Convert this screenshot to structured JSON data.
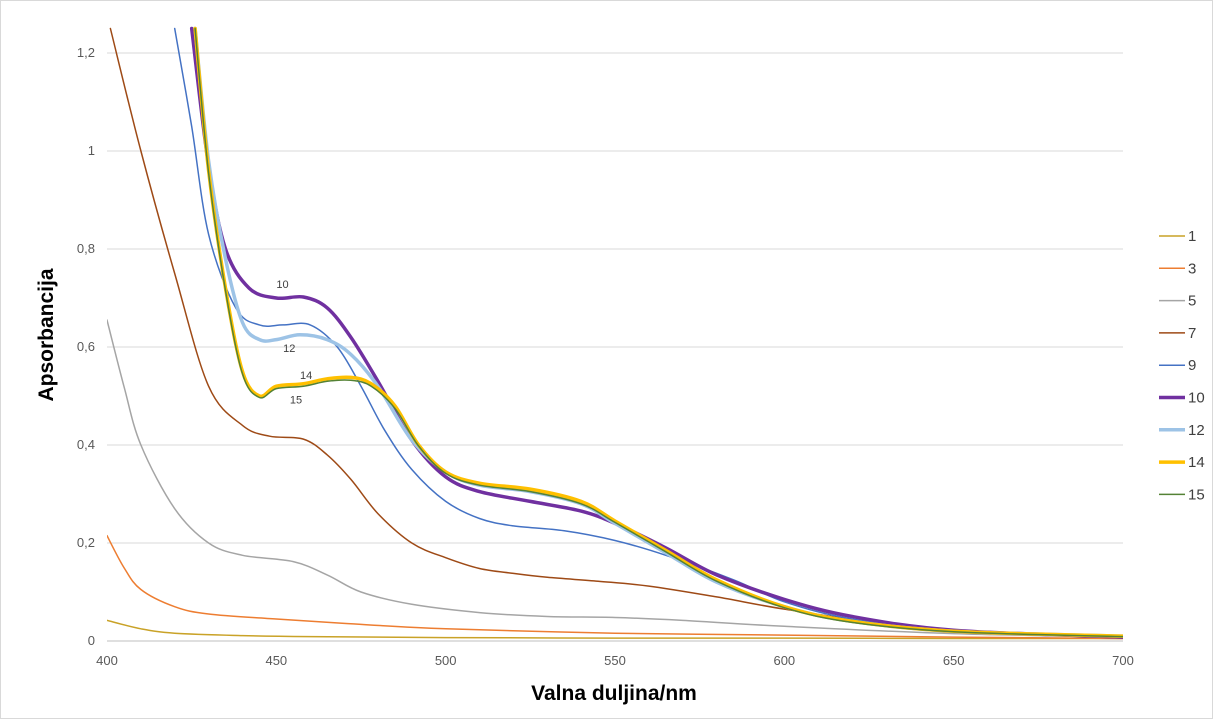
{
  "chart_data": {
    "type": "line",
    "title": "",
    "xlabel": "Valna duljina/nm",
    "ylabel": "Apsorbancija",
    "xlim": [
      400,
      700
    ],
    "ylim": [
      0,
      1.25
    ],
    "xticks": [
      "400",
      "450",
      "500",
      "550",
      "600",
      "650",
      "700"
    ],
    "yticks": [
      "0",
      "0,2",
      "0,4",
      "0,6",
      "0,8",
      "1",
      "1,2"
    ],
    "grid": "horizontal",
    "legend_position": "right",
    "annotations": [
      {
        "text": "10",
        "x": 450,
        "y": 0.72
      },
      {
        "text": "12",
        "x": 452,
        "y": 0.59
      },
      {
        "text": "14",
        "x": 457,
        "y": 0.535
      },
      {
        "text": "15",
        "x": 454,
        "y": 0.485
      }
    ],
    "series": [
      {
        "name": "1",
        "color": "#c9a227",
        "width": 1.5,
        "points": [
          [
            400,
            0.042
          ],
          [
            410,
            0.025
          ],
          [
            420,
            0.016
          ],
          [
            440,
            0.011
          ],
          [
            460,
            0.009
          ],
          [
            500,
            0.007
          ],
          [
            550,
            0.006
          ],
          [
            600,
            0.006
          ],
          [
            650,
            0.005
          ],
          [
            700,
            0.005
          ]
        ]
      },
      {
        "name": "3",
        "color": "#ed7d31",
        "width": 1.5,
        "points": [
          [
            400,
            0.215
          ],
          [
            405,
            0.15
          ],
          [
            410,
            0.105
          ],
          [
            420,
            0.07
          ],
          [
            430,
            0.055
          ],
          [
            450,
            0.045
          ],
          [
            470,
            0.036
          ],
          [
            500,
            0.025
          ],
          [
            550,
            0.016
          ],
          [
            600,
            0.012
          ],
          [
            650,
            0.008
          ],
          [
            700,
            0.005
          ]
        ]
      },
      {
        "name": "5",
        "color": "#a5a5a5",
        "width": 1.5,
        "points": [
          [
            400,
            0.655
          ],
          [
            405,
            0.52
          ],
          [
            410,
            0.4
          ],
          [
            420,
            0.27
          ],
          [
            430,
            0.2
          ],
          [
            440,
            0.175
          ],
          [
            455,
            0.162
          ],
          [
            465,
            0.135
          ],
          [
            475,
            0.1
          ],
          [
            490,
            0.075
          ],
          [
            510,
            0.058
          ],
          [
            530,
            0.05
          ],
          [
            550,
            0.048
          ],
          [
            570,
            0.042
          ],
          [
            600,
            0.03
          ],
          [
            650,
            0.015
          ],
          [
            700,
            0.008
          ]
        ]
      },
      {
        "name": "7",
        "color": "#9e4a16",
        "width": 1.5,
        "points": [
          [
            401,
            1.25
          ],
          [
            410,
            1.0
          ],
          [
            420,
            0.75
          ],
          [
            430,
            0.52
          ],
          [
            440,
            0.44
          ],
          [
            448,
            0.418
          ],
          [
            458,
            0.412
          ],
          [
            465,
            0.38
          ],
          [
            472,
            0.33
          ],
          [
            480,
            0.26
          ],
          [
            490,
            0.2
          ],
          [
            500,
            0.17
          ],
          [
            510,
            0.148
          ],
          [
            520,
            0.138
          ],
          [
            530,
            0.13
          ],
          [
            545,
            0.122
          ],
          [
            560,
            0.112
          ],
          [
            580,
            0.09
          ],
          [
            600,
            0.065
          ],
          [
            630,
            0.035
          ],
          [
            660,
            0.018
          ],
          [
            700,
            0.006
          ]
        ]
      },
      {
        "name": "9",
        "color": "#4472c4",
        "width": 1.5,
        "points": [
          [
            420,
            1.25
          ],
          [
            425,
            1.05
          ],
          [
            430,
            0.83
          ],
          [
            438,
            0.68
          ],
          [
            445,
            0.645
          ],
          [
            452,
            0.645
          ],
          [
            460,
            0.645
          ],
          [
            468,
            0.6
          ],
          [
            475,
            0.52
          ],
          [
            482,
            0.43
          ],
          [
            490,
            0.35
          ],
          [
            500,
            0.285
          ],
          [
            510,
            0.25
          ],
          [
            520,
            0.235
          ],
          [
            535,
            0.225
          ],
          [
            550,
            0.205
          ],
          [
            565,
            0.175
          ],
          [
            585,
            0.125
          ],
          [
            600,
            0.08
          ],
          [
            620,
            0.045
          ],
          [
            650,
            0.022
          ],
          [
            700,
            0.008
          ]
        ]
      },
      {
        "name": "10",
        "color": "#7030a0",
        "width": 3.5,
        "points": [
          [
            425,
            1.25
          ],
          [
            430,
            0.97
          ],
          [
            435,
            0.8
          ],
          [
            442,
            0.72
          ],
          [
            450,
            0.7
          ],
          [
            458,
            0.702
          ],
          [
            465,
            0.68
          ],
          [
            472,
            0.62
          ],
          [
            480,
            0.53
          ],
          [
            490,
            0.41
          ],
          [
            500,
            0.335
          ],
          [
            510,
            0.305
          ],
          [
            525,
            0.285
          ],
          [
            540,
            0.265
          ],
          [
            550,
            0.24
          ],
          [
            565,
            0.19
          ],
          [
            580,
            0.135
          ],
          [
            600,
            0.085
          ],
          [
            620,
            0.05
          ],
          [
            650,
            0.022
          ],
          [
            700,
            0.008
          ]
        ]
      },
      {
        "name": "12",
        "color": "#9dc3e6",
        "width": 3.5,
        "points": [
          [
            426,
            1.25
          ],
          [
            430,
            0.98
          ],
          [
            435,
            0.78
          ],
          [
            440,
            0.65
          ],
          [
            445,
            0.615
          ],
          [
            450,
            0.615
          ],
          [
            457,
            0.625
          ],
          [
            465,
            0.615
          ],
          [
            472,
            0.585
          ],
          [
            480,
            0.52
          ],
          [
            490,
            0.41
          ],
          [
            500,
            0.345
          ],
          [
            510,
            0.318
          ],
          [
            525,
            0.305
          ],
          [
            540,
            0.28
          ],
          [
            550,
            0.24
          ],
          [
            565,
            0.18
          ],
          [
            580,
            0.12
          ],
          [
            600,
            0.07
          ],
          [
            620,
            0.04
          ],
          [
            650,
            0.02
          ],
          [
            700,
            0.01
          ]
        ]
      },
      {
        "name": "14",
        "color": "#ffc000",
        "width": 3.5,
        "points": [
          [
            426,
            1.25
          ],
          [
            430,
            0.96
          ],
          [
            435,
            0.72
          ],
          [
            440,
            0.55
          ],
          [
            445,
            0.5
          ],
          [
            450,
            0.52
          ],
          [
            458,
            0.525
          ],
          [
            465,
            0.535
          ],
          [
            472,
            0.538
          ],
          [
            478,
            0.525
          ],
          [
            485,
            0.48
          ],
          [
            492,
            0.4
          ],
          [
            500,
            0.345
          ],
          [
            510,
            0.322
          ],
          [
            525,
            0.31
          ],
          [
            540,
            0.285
          ],
          [
            550,
            0.245
          ],
          [
            565,
            0.185
          ],
          [
            580,
            0.125
          ],
          [
            600,
            0.07
          ],
          [
            620,
            0.04
          ],
          [
            650,
            0.02
          ],
          [
            700,
            0.01
          ]
        ]
      },
      {
        "name": "15",
        "color": "#548235",
        "width": 1.5,
        "points": [
          [
            426,
            1.25
          ],
          [
            430,
            0.955
          ],
          [
            435,
            0.715
          ],
          [
            440,
            0.545
          ],
          [
            445,
            0.497
          ],
          [
            450,
            0.515
          ],
          [
            458,
            0.52
          ],
          [
            465,
            0.53
          ],
          [
            472,
            0.532
          ],
          [
            478,
            0.52
          ],
          [
            485,
            0.475
          ],
          [
            492,
            0.398
          ],
          [
            500,
            0.342
          ],
          [
            510,
            0.318
          ],
          [
            525,
            0.305
          ],
          [
            540,
            0.28
          ],
          [
            550,
            0.242
          ],
          [
            565,
            0.182
          ],
          [
            580,
            0.122
          ],
          [
            600,
            0.068
          ],
          [
            620,
            0.038
          ],
          [
            650,
            0.019
          ],
          [
            700,
            0.009
          ]
        ]
      }
    ]
  }
}
